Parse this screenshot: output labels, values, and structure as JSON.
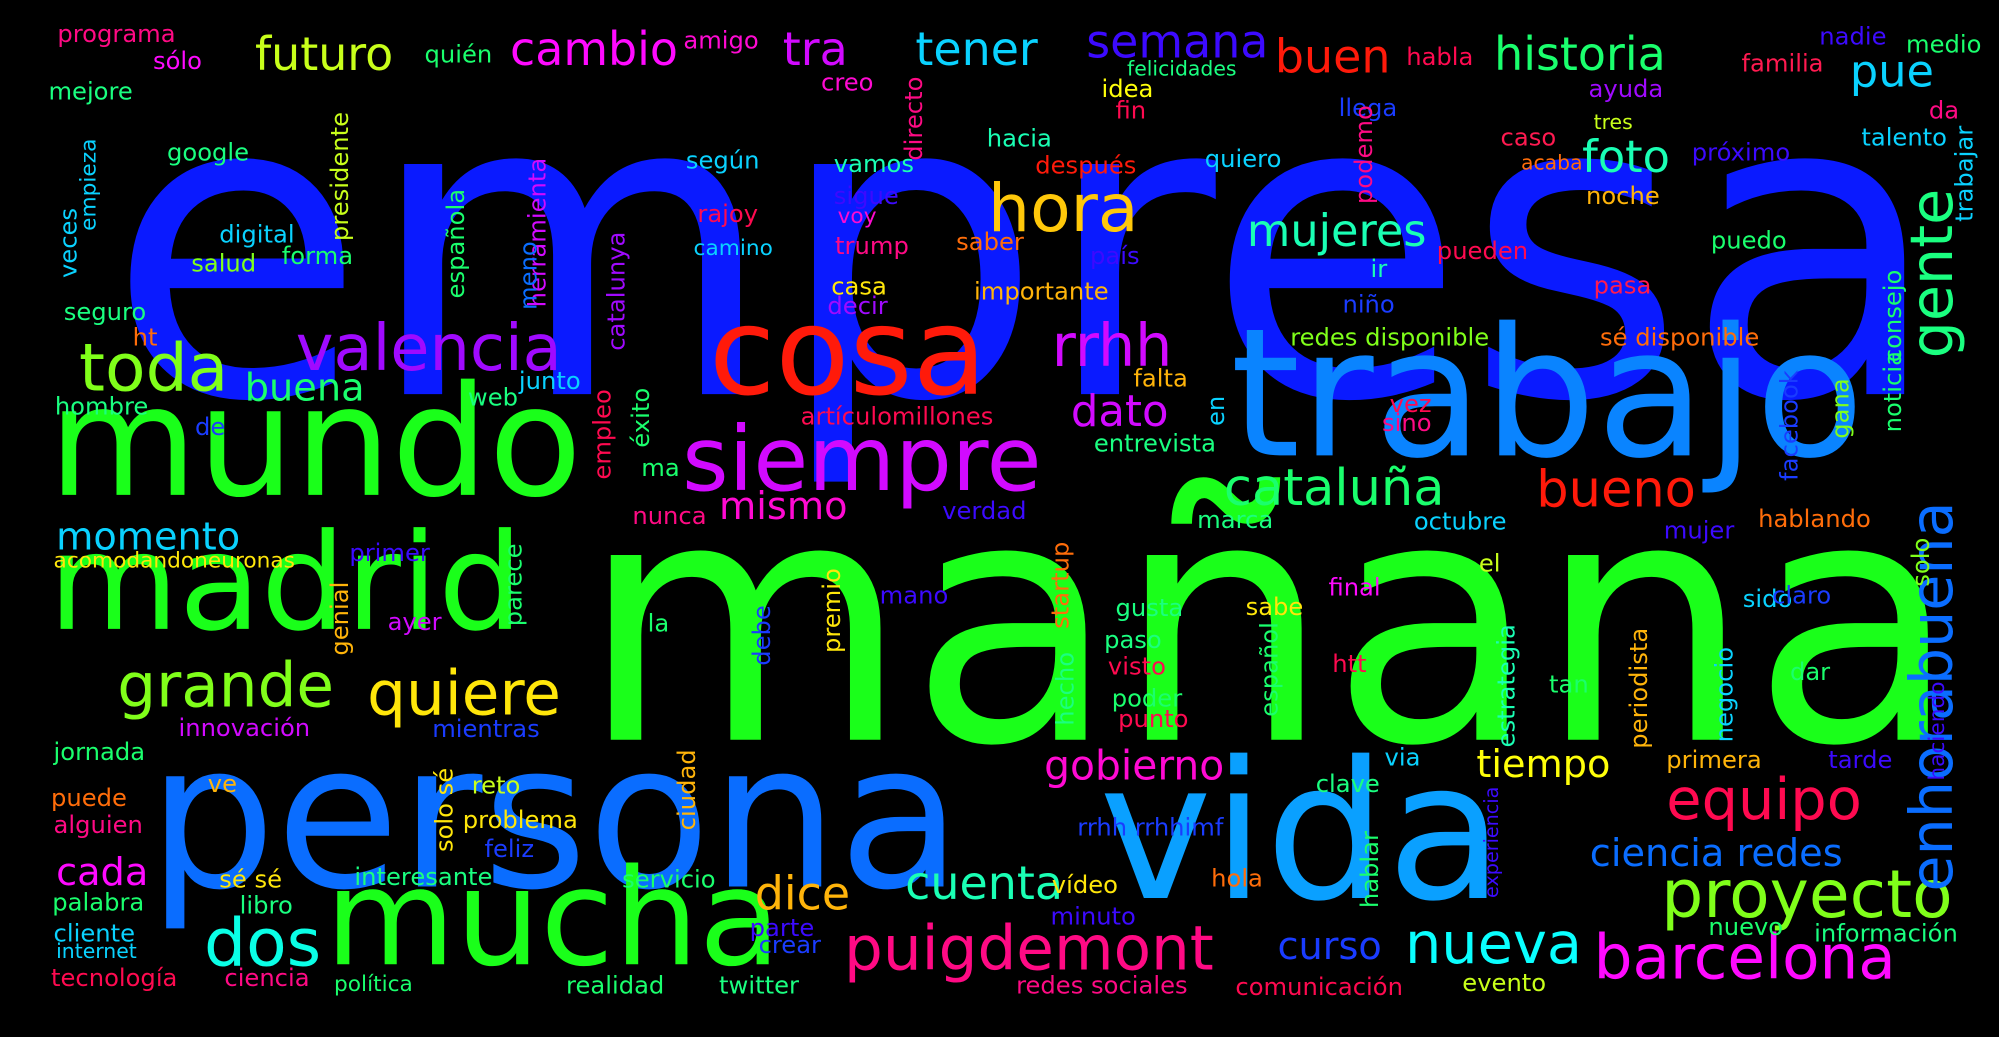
{
  "words": [
    {
      "text": "empresa",
      "color": "#0a1aff"
    },
    {
      "text": "mañana",
      "color": "#1aff1a"
    },
    {
      "text": "persona",
      "color": "#0a6dff"
    },
    {
      "text": "trabajo",
      "color": "#0a84ff"
    },
    {
      "text": "vida",
      "color": "#0aa0ff"
    },
    {
      "text": "mundo",
      "color": "#1aff1a"
    },
    {
      "text": "madrid",
      "color": "#1aff1a"
    },
    {
      "text": "mucha",
      "color": "#1aff1a"
    },
    {
      "text": "cosa",
      "color": "#ff1a0a"
    },
    {
      "text": "siempre",
      "color": "#d20aff"
    },
    {
      "text": "valencia",
      "color": "#a00aff"
    },
    {
      "text": "toda",
      "color": "#80ff1a"
    },
    {
      "text": "cataluña",
      "color": "#1aff6d"
    },
    {
      "text": "bueno",
      "color": "#ff1a0a"
    },
    {
      "text": "grande",
      "color": "#80ff1a"
    },
    {
      "text": "quiere",
      "color": "#ffe60a"
    },
    {
      "text": "puigdemont",
      "color": "#ff0a84"
    },
    {
      "text": "barcelona",
      "color": "#ff0aff"
    },
    {
      "text": "proyecto",
      "color": "#80ff1a"
    },
    {
      "text": "equipo",
      "color": "#ff0a50"
    },
    {
      "text": "nueva",
      "color": "#0affff"
    },
    {
      "text": "enhorabuena",
      "color": "#0a6dff"
    },
    {
      "text": "hora",
      "color": "#ffc80a"
    },
    {
      "text": "gente",
      "color": "#1aff80"
    },
    {
      "text": "rrhh",
      "color": "#d20aff"
    },
    {
      "text": "dos",
      "color": "#0affe6"
    },
    {
      "text": "cuenta",
      "color": "#1affb4"
    },
    {
      "text": "dice",
      "color": "#ffb40a"
    },
    {
      "text": "gobierno",
      "color": "#ff0ad2"
    },
    {
      "text": "tiempo",
      "color": "#ffff0a"
    },
    {
      "text": "mujeres",
      "color": "#1affb4"
    },
    {
      "text": "ciencia redes",
      "color": "#0a6dff"
    },
    {
      "text": "historia",
      "color": "#1aff6d"
    },
    {
      "text": "buen",
      "color": "#ff1a0a"
    },
    {
      "text": "cambio",
      "color": "#ff0aff"
    },
    {
      "text": "futuro",
      "color": "#c8ff1a"
    },
    {
      "text": "tener",
      "color": "#0ad2ff"
    },
    {
      "text": "semana",
      "color": "#3c0aff"
    },
    {
      "text": "tra",
      "color": "#d20aff"
    },
    {
      "text": "foto",
      "color": "#1affb4"
    },
    {
      "text": "pue",
      "color": "#0ad2ff"
    },
    {
      "text": "momento",
      "color": "#0ad2ff"
    },
    {
      "text": "cada",
      "color": "#ff0aff"
    },
    {
      "text": "buena",
      "color": "#1aff6d"
    },
    {
      "text": "dato",
      "color": "#d20aff"
    },
    {
      "text": "mismo",
      "color": "#ff0ad2"
    },
    {
      "text": "curso",
      "color": "#1a3cff"
    },
    {
      "text": "programa",
      "color": "#ff0a84"
    },
    {
      "text": "sólo",
      "color": "#ff0aff"
    },
    {
      "text": "quién",
      "color": "#1aff6d"
    },
    {
      "text": "amigo",
      "color": "#ff0ad2"
    },
    {
      "text": "felicidades",
      "color": "#1aff80"
    },
    {
      "text": "habla",
      "color": "#ff0a50"
    },
    {
      "text": "nadie",
      "color": "#3c0aff"
    },
    {
      "text": "medio",
      "color": "#1aff6d"
    },
    {
      "text": "familia",
      "color": "#ff1a50"
    },
    {
      "text": "mejore",
      "color": "#1aff80"
    },
    {
      "text": "idea",
      "color": "#ffff0a"
    },
    {
      "text": "creo",
      "color": "#ff0ad2"
    },
    {
      "text": "fin",
      "color": "#ff0a50"
    },
    {
      "text": "llega",
      "color": "#1a3cff"
    },
    {
      "text": "ayuda",
      "color": "#a00aff"
    },
    {
      "text": "tres",
      "color": "#c8ff1a"
    },
    {
      "text": "talento",
      "color": "#0ad2ff"
    },
    {
      "text": "da",
      "color": "#ff0a84"
    },
    {
      "text": "google",
      "color": "#1aff80"
    },
    {
      "text": "presidente",
      "color": "#c8ff1a"
    },
    {
      "text": "empieza",
      "color": "#0ad2ff"
    },
    {
      "text": "hacia",
      "color": "#1affb4"
    },
    {
      "text": "vamos",
      "color": "#1affb4"
    },
    {
      "text": "según",
      "color": "#0ad2ff"
    },
    {
      "text": "herramienta",
      "color": "#d20aff"
    },
    {
      "text": "catalunya",
      "color": "#a00aff"
    },
    {
      "text": "directo",
      "color": "#ff0a84"
    },
    {
      "text": "quiero",
      "color": "#0ad2ff"
    },
    {
      "text": "después",
      "color": "#ff1a0a"
    },
    {
      "text": "caso",
      "color": "#ff1a50"
    },
    {
      "text": "acaba",
      "color": "#ff6d0a"
    },
    {
      "text": "próximo",
      "color": "#3c0aff"
    },
    {
      "text": "trabajar",
      "color": "#0ad2ff"
    },
    {
      "text": "sigue",
      "color": "#3c0aff"
    },
    {
      "text": "voy",
      "color": "#ff0ad2"
    },
    {
      "text": "rajoy",
      "color": "#ff0a50"
    },
    {
      "text": "podemo",
      "color": "#ff0a84"
    },
    {
      "text": "noche",
      "color": "#ffb40a"
    },
    {
      "text": "digital",
      "color": "#0ad2ff"
    },
    {
      "text": "salud",
      "color": "#80ff1a"
    },
    {
      "text": "forma",
      "color": "#1aff6d"
    },
    {
      "text": "española",
      "color": "#1aff6d"
    },
    {
      "text": "veces",
      "color": "#0ad2ff"
    },
    {
      "text": "camino",
      "color": "#0ad2ff"
    },
    {
      "text": "trump",
      "color": "#ff0a84"
    },
    {
      "text": "saber",
      "color": "#ff6d0a"
    },
    {
      "text": "país",
      "color": "#3c0aff"
    },
    {
      "text": "ir",
      "color": "#1affb4"
    },
    {
      "text": "pueden",
      "color": "#ff0a50"
    },
    {
      "text": "puedo",
      "color": "#1aff6d"
    },
    {
      "text": "meno",
      "color": "#0a6dff"
    },
    {
      "text": "seguro",
      "color": "#1aff80"
    },
    {
      "text": "casa",
      "color": "#ffe60a"
    },
    {
      "text": "importante",
      "color": "#ffb40a"
    },
    {
      "text": "decir",
      "color": "#a00aff"
    },
    {
      "text": "niño",
      "color": "#1a3cff"
    },
    {
      "text": "pasa",
      "color": "#ff1a50"
    },
    {
      "text": "consejo",
      "color": "#1aff6d"
    },
    {
      "text": "ht",
      "color": "#ff6d0a"
    },
    {
      "text": "redes disponible",
      "color": "#80ff1a"
    },
    {
      "text": "sé disponible",
      "color": "#ff6d0a"
    },
    {
      "text": "hombre",
      "color": "#1aff80"
    },
    {
      "text": "junto",
      "color": "#0ad2ff"
    },
    {
      "text": "web",
      "color": "#1aff80"
    },
    {
      "text": "éxito",
      "color": "#1aff6d"
    },
    {
      "text": "falta",
      "color": "#ffb40a"
    },
    {
      "text": "en",
      "color": "#0ad2ff"
    },
    {
      "text": "vez",
      "color": "#ff0a50"
    },
    {
      "text": "sino",
      "color": "#ff0a84"
    },
    {
      "text": "facebook",
      "color": "#1a3cff"
    },
    {
      "text": "gana",
      "color": "#80ff1a"
    },
    {
      "text": "noticia",
      "color": "#1aff6d"
    },
    {
      "text": "de",
      "color": "#1a3cff"
    },
    {
      "text": "artículomillones",
      "color": "#ff0a50"
    },
    {
      "text": "empleo",
      "color": "#ff0a50"
    },
    {
      "text": "entrevista",
      "color": "#1aff80"
    },
    {
      "text": "ma",
      "color": "#1aff6d"
    },
    {
      "text": "nunca",
      "color": "#ff0a84"
    },
    {
      "text": "verdad",
      "color": "#3c0aff"
    },
    {
      "text": "marca",
      "color": "#1aff80"
    },
    {
      "text": "octubre",
      "color": "#0ad2ff"
    },
    {
      "text": "mujer",
      "color": "#3c0aff"
    },
    {
      "text": "hablando",
      "color": "#ff6d0a"
    },
    {
      "text": "acomodandoneuronas",
      "color": "#ffe60a"
    },
    {
      "text": "primer",
      "color": "#3c0aff"
    },
    {
      "text": "parece",
      "color": "#1aff6d"
    },
    {
      "text": "ayer",
      "color": "#d20aff"
    },
    {
      "text": "genial",
      "color": "#ffb40a"
    },
    {
      "text": "startup",
      "color": "#ff6d0a"
    },
    {
      "text": "mano",
      "color": "#3c0aff"
    },
    {
      "text": "premio",
      "color": "#ffe60a"
    },
    {
      "text": "gusta",
      "color": "#1aff80"
    },
    {
      "text": "sabe",
      "color": "#ffe60a"
    },
    {
      "text": "el",
      "color": "#c8ff1a"
    },
    {
      "text": "final",
      "color": "#ff0aff"
    },
    {
      "text": "sido",
      "color": "#0ad2ff"
    },
    {
      "text": "claro",
      "color": "#1a3cff"
    },
    {
      "text": "solo",
      "color": "#80ff1a"
    },
    {
      "text": "la",
      "color": "#1aff6d"
    },
    {
      "text": "debe",
      "color": "#1a3cff"
    },
    {
      "text": "hecho",
      "color": "#1aff80"
    },
    {
      "text": "paso",
      "color": "#1aff80"
    },
    {
      "text": "visto",
      "color": "#ff0a50"
    },
    {
      "text": "poder",
      "color": "#1aff6d"
    },
    {
      "text": "punto",
      "color": "#ff0a50"
    },
    {
      "text": "español",
      "color": "#1aff6d"
    },
    {
      "text": "htt",
      "color": "#ff0a50"
    },
    {
      "text": "estrategia",
      "color": "#1affb4"
    },
    {
      "text": "tan",
      "color": "#1aff6d"
    },
    {
      "text": "periodista",
      "color": "#ffb40a"
    },
    {
      "text": "negocio",
      "color": "#0ad2ff"
    },
    {
      "text": "dar",
      "color": "#1aff6d"
    },
    {
      "text": "haciendo",
      "color": "#3c0aff"
    },
    {
      "text": "jornada",
      "color": "#1aff6d"
    },
    {
      "text": "innovación",
      "color": "#d20aff"
    },
    {
      "text": "mientras",
      "color": "#1a3cff"
    },
    {
      "text": "puede",
      "color": "#ff6d0a"
    },
    {
      "text": "ve",
      "color": "#ffb40a"
    },
    {
      "text": "alguien",
      "color": "#ff0a84"
    },
    {
      "text": "solo sé",
      "color": "#ffe60a"
    },
    {
      "text": "reto",
      "color": "#c8ff1a"
    },
    {
      "text": "ciudad",
      "color": "#ffb40a"
    },
    {
      "text": "problema",
      "color": "#ffe60a"
    },
    {
      "text": "feliz",
      "color": "#1a3cff"
    },
    {
      "text": "rrhh rrhhimf",
      "color": "#1a3cff"
    },
    {
      "text": "clave",
      "color": "#1aff80"
    },
    {
      "text": "via",
      "color": "#0ad2ff"
    },
    {
      "text": "hablar",
      "color": "#1aff6d"
    },
    {
      "text": "experiencia",
      "color": "#3c0aff"
    },
    {
      "text": "primera",
      "color": "#ffb40a"
    },
    {
      "text": "tarde",
      "color": "#3c0aff"
    },
    {
      "text": "sé sé",
      "color": "#ffe60a"
    },
    {
      "text": "interesante",
      "color": "#1aff80"
    },
    {
      "text": "servicio",
      "color": "#1aff6d"
    },
    {
      "text": "palabra",
      "color": "#1aff6d"
    },
    {
      "text": "libro",
      "color": "#1aff80"
    },
    {
      "text": "cliente",
      "color": "#0ad2ff"
    },
    {
      "text": "internet",
      "color": "#0ad2ff"
    },
    {
      "text": "tecnología",
      "color": "#ff0a50"
    },
    {
      "text": "ciencia",
      "color": "#ff0a84"
    },
    {
      "text": "política",
      "color": "#1aff6d"
    },
    {
      "text": "realidad",
      "color": "#1aff6d"
    },
    {
      "text": "twitter",
      "color": "#1aff80"
    },
    {
      "text": "redes sociales",
      "color": "#ff0a84"
    },
    {
      "text": "comunicación",
      "color": "#ff0a50"
    },
    {
      "text": "evento",
      "color": "#c8ff1a"
    },
    {
      "text": "parte",
      "color": "#3c0aff"
    },
    {
      "text": "crear",
      "color": "#1a3cff"
    },
    {
      "text": "minuto",
      "color": "#3c0aff"
    },
    {
      "text": "vídeo",
      "color": "#ffe60a"
    },
    {
      "text": "hola",
      "color": "#ff6d0a"
    },
    {
      "text": "nuevo",
      "color": "#1aff6d"
    },
    {
      "text": "información",
      "color": "#1aff80"
    }
  ]
}
